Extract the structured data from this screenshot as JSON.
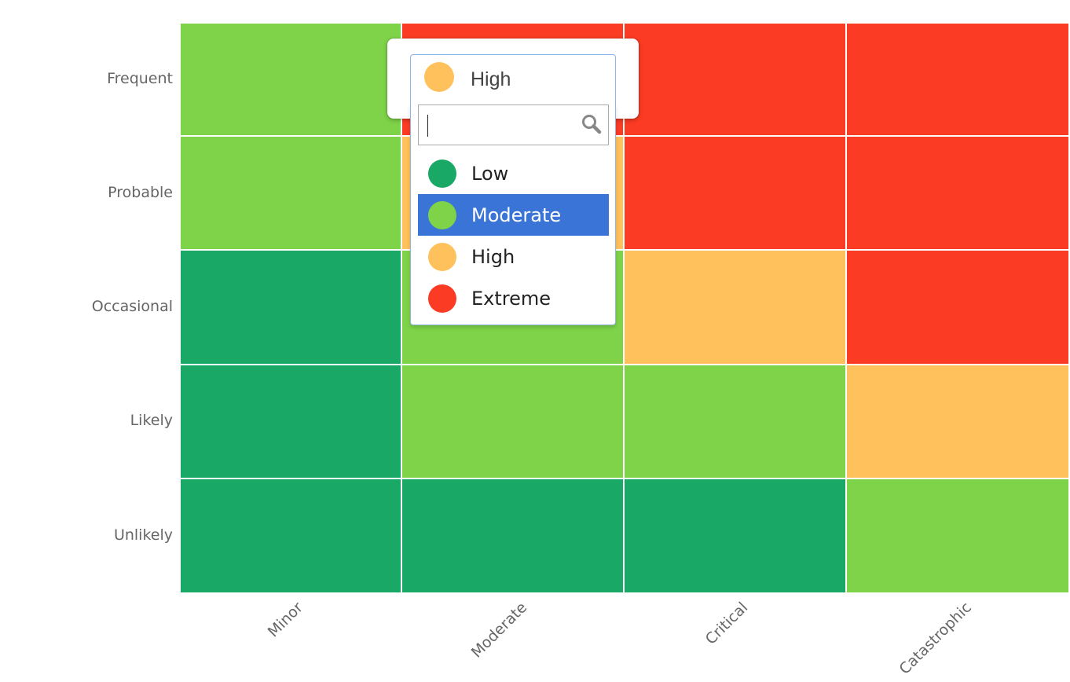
{
  "colors": {
    "Low": "#19a865",
    "Moderate": "#7ed348",
    "High": "#ffc15c",
    "Extreme": "#fb3b24"
  },
  "matrix": {
    "rows": [
      "Frequent",
      "Probable",
      "Occasional",
      "Likely",
      "Unlikely"
    ],
    "columns": [
      "Minor",
      "Moderate",
      "Critical",
      "Catastrophic"
    ],
    "cells": [
      [
        "Moderate",
        "Extreme",
        "Extreme",
        "Extreme"
      ],
      [
        "Moderate",
        "High",
        "Extreme",
        "Extreme"
      ],
      [
        "Low",
        "Moderate",
        "High",
        "Extreme"
      ],
      [
        "Low",
        "Moderate",
        "Moderate",
        "High"
      ],
      [
        "Low",
        "Low",
        "Low",
        "Moderate"
      ]
    ]
  },
  "select": {
    "selected_label": "High",
    "selected_level": "High",
    "search_value": "",
    "search_icon": "search-icon",
    "highlighted": "Moderate",
    "options": [
      {
        "label": "Low",
        "level": "Low"
      },
      {
        "label": "Moderate",
        "level": "Moderate"
      },
      {
        "label": "High",
        "level": "High"
      },
      {
        "label": "Extreme",
        "level": "Extreme"
      }
    ]
  }
}
